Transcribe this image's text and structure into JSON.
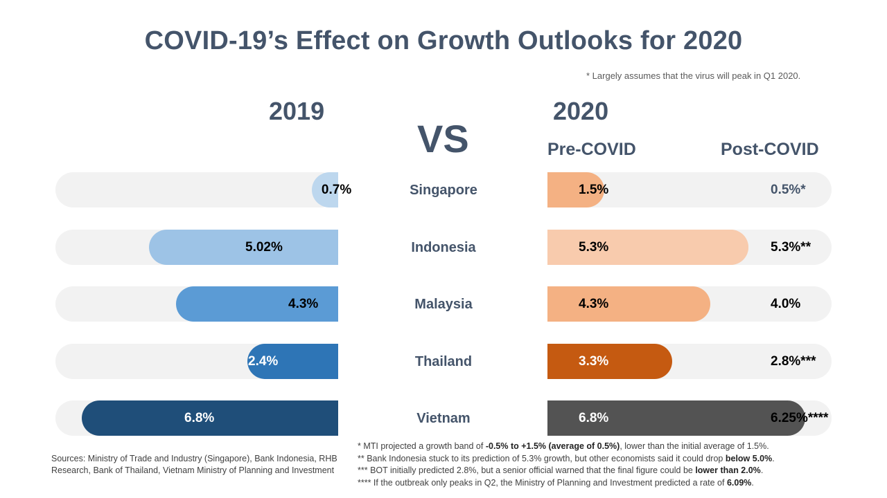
{
  "title": "COVID-19’s Effect on Growth Outlooks for 2020",
  "top_note": "* Largely assumes that the virus will peak in Q1 2020.",
  "headers": {
    "year_2019": "2019",
    "vs": "VS",
    "year_2020": "2020",
    "pre_covid": "Pre-COVID",
    "post_covid": "Post-COVID"
  },
  "chart_data": {
    "type": "bar",
    "title": "COVID-19’s Effect on Growth Outlooks for 2020",
    "categories": [
      "Singapore",
      "Indonesia",
      "Malaysia",
      "Thailand",
      "Vietnam"
    ],
    "series": [
      {
        "name": "2019",
        "values": [
          0.7,
          5.02,
          4.3,
          2.4,
          6.8
        ],
        "labels": [
          "0.7%",
          "5.02%",
          "4.3%",
          "2.4%",
          "6.8%"
        ]
      },
      {
        "name": "Pre-COVID",
        "values": [
          1.5,
          5.3,
          4.3,
          3.3,
          6.8
        ],
        "labels": [
          "1.5%",
          "5.3%",
          "4.3%",
          "3.3%",
          "6.8%"
        ]
      },
      {
        "name": "Post-COVID",
        "values": [
          0.5,
          5.3,
          4.0,
          2.8,
          6.25
        ],
        "labels": [
          "0.5%*",
          "5.3%**",
          "4.0%",
          "2.8%***",
          "6.25%****"
        ]
      }
    ],
    "colors_2019": [
      "#bdd7ee",
      "#9dc3e6",
      "#5b9bd5",
      "#2e75b6",
      "#1f4e79"
    ],
    "colors_pre": [
      "#f4b183",
      "#f8cbad",
      "#f4b183",
      "#c55a11",
      "#535353"
    ],
    "colors_post": [
      "#f8d7c1",
      "#f8cbad",
      "#f8d7c1",
      "#dfab87",
      "#a5a5a5"
    ],
    "label_colors_2019": [
      "#000000",
      "#000000",
      "#000000",
      "#ffffff",
      "#ffffff"
    ],
    "label_colors_pre": [
      "#000000",
      "#000000",
      "#000000",
      "#ffffff",
      "#ffffff"
    ],
    "track_color": "#f2f2f2",
    "xlim": [
      0,
      7.5
    ]
  },
  "sources": "Sources: Ministry of Trade and Industry (Singapore), Bank Indonesia, RHB Research, Bank of Thailand, Vietnam Ministry of Planning and Investment",
  "notes": {
    "n1_pre": "* MTI projected a growth band of ",
    "n1_bold": "-0.5% to +1.5% (average of 0.5%)",
    "n1_post": ", lower than the initial average of 1.5%.",
    "n2_pre": "** Bank Indonesia stuck to its prediction of 5.3% growth, but other economists said it could drop ",
    "n2_bold": "below 5.0%",
    "n2_post": ".",
    "n3_pre": "*** BOT initially predicted 2.8%, but a senior official warned that the final figure could be ",
    "n3_bold": "lower than 2.0%",
    "n3_post": ".",
    "n4_pre": "**** If the outbreak only peaks in Q2, the Ministry of Planning and Investment predicted a rate of ",
    "n4_bold": "6.09%",
    "n4_post": "."
  }
}
